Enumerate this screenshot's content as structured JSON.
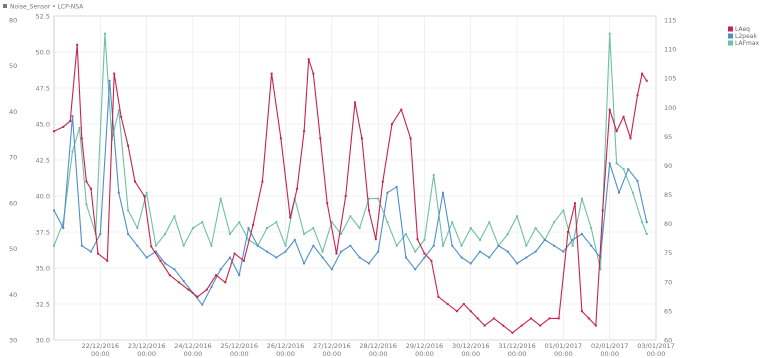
{
  "header": {
    "title": "Noise_Sensor • LCP-NSA"
  },
  "legend": {
    "position": "top-right",
    "items": [
      {
        "label": "LAeq",
        "color": "#c8234a"
      },
      {
        "label": "L2peak",
        "color": "#4f8fc8"
      },
      {
        "label": "LAFmax",
        "color": "#6fbfa6"
      }
    ]
  },
  "chart_data": {
    "type": "line",
    "title": "",
    "xlabel": "",
    "ylabel": "",
    "grid": true,
    "x_ticks": [
      {
        "date": "22/12/2016",
        "time": "00:00"
      },
      {
        "date": "23/12/2016",
        "time": "00:00"
      },
      {
        "date": "24/12/2016",
        "time": "00:00"
      },
      {
        "date": "25/12/2016",
        "time": "00:00"
      },
      {
        "date": "26/12/2016",
        "time": "00:00"
      },
      {
        "date": "27/12/2016",
        "time": "00:00"
      },
      {
        "date": "28/12/2016",
        "time": "00:00"
      },
      {
        "date": "29/12/2016",
        "time": "00:00"
      },
      {
        "date": "30/12/2016",
        "time": "00:00"
      },
      {
        "date": "31/12/2016",
        "time": "00:00"
      },
      {
        "date": "01/01/2017",
        "time": "00:00"
      },
      {
        "date": "02/01/2017",
        "time": "00:00"
      },
      {
        "date": "03/01/2017",
        "time": "00:00"
      }
    ],
    "y_axes": {
      "outer_left": {
        "ticks": [
          "80",
          "50",
          "40",
          "70",
          "60",
          "50",
          "40",
          "30"
        ]
      },
      "inner_left": {
        "ticks": [
          "52.5",
          "50.0",
          "47.5",
          "45.0",
          "42.5",
          "40.0",
          "37.5",
          "35.0",
          "32.5",
          "30.0"
        ],
        "ylim": [
          30,
          52.5
        ]
      },
      "right": {
        "ticks": [
          "115",
          "110",
          "105",
          "100",
          "95",
          "90",
          "85",
          "80",
          "75",
          "70",
          "65",
          "60"
        ],
        "ylim": [
          60,
          115
        ]
      }
    },
    "series": [
      {
        "name": "LAeq",
        "axis": "inner_left",
        "color": "#c8234a",
        "x_day": [
          0,
          0.2,
          0.35,
          0.5,
          0.6,
          0.7,
          0.8,
          0.95,
          1.15,
          1.3,
          1.45,
          1.6,
          1.75,
          1.95,
          2.1,
          2.3,
          2.5,
          2.7,
          2.9,
          3.1,
          3.3,
          3.5,
          3.7,
          3.9,
          4.1,
          4.3,
          4.5,
          4.7,
          4.9,
          5.1,
          5.25,
          5.4,
          5.5,
          5.6,
          5.75,
          5.9,
          6.1,
          6.3,
          6.5,
          6.65,
          6.8,
          6.95,
          7.1,
          7.3,
          7.5,
          7.7,
          7.85,
          8.0,
          8.15,
          8.3,
          8.5,
          8.7,
          8.85,
          9.0,
          9.15,
          9.3,
          9.5,
          9.7,
          9.9,
          10.1,
          10.3,
          10.5,
          10.7,
          10.9,
          11.1,
          11.25,
          11.4,
          11.55,
          11.7,
          11.85,
          12.0,
          12.15,
          12.3,
          12.45,
          12.6,
          12.7,
          12.8
        ],
        "values": [
          44.5,
          44.8,
          45.2,
          50.5,
          44.0,
          41.0,
          40.5,
          36.0,
          35.5,
          48.5,
          45.5,
          43.5,
          41.0,
          40.0,
          36.5,
          35.5,
          34.5,
          34.0,
          33.5,
          33.0,
          33.5,
          34.5,
          34.0,
          36.0,
          35.5,
          38.0,
          41.0,
          48.5,
          44.0,
          38.5,
          40.5,
          44.5,
          49.5,
          48.5,
          44.0,
          39.5,
          36.0,
          40.0,
          46.5,
          44.0,
          39.0,
          37.0,
          41.0,
          45.0,
          46.0,
          44.0,
          37.0,
          36.0,
          35.5,
          33.0,
          32.5,
          32.0,
          32.5,
          32.0,
          31.5,
          31.0,
          31.5,
          31.0,
          30.5,
          31.0,
          31.5,
          31.0,
          31.5,
          31.5,
          37.5,
          39.5,
          32.0,
          31.5,
          31.0,
          39.0,
          46.0,
          44.5,
          45.5,
          44.0,
          47.0,
          48.5,
          48.0
        ]
      },
      {
        "name": "L2peak",
        "axis": "right",
        "color": "#4f8fc8",
        "x_day": [
          0,
          0.2,
          0.4,
          0.6,
          0.8,
          1.0,
          1.2,
          1.4,
          1.6,
          1.8,
          2.0,
          2.2,
          2.4,
          2.6,
          2.8,
          3.0,
          3.2,
          3.4,
          3.6,
          3.8,
          4.0,
          4.2,
          4.4,
          4.6,
          4.8,
          5.0,
          5.2,
          5.4,
          5.6,
          5.8,
          6.0,
          6.2,
          6.4,
          6.6,
          6.8,
          7.0,
          7.2,
          7.4,
          7.6,
          7.8,
          8.0,
          8.2,
          8.4,
          8.6,
          8.8,
          9.0,
          9.2,
          9.4,
          9.6,
          9.8,
          10.0,
          10.2,
          10.4,
          10.6,
          10.8,
          11.0,
          11.2,
          11.4,
          11.6,
          11.8,
          12.0,
          12.2,
          12.4,
          12.6,
          12.8
        ],
        "values": [
          82,
          79,
          98,
          76,
          75,
          78,
          104,
          85,
          78,
          76,
          74,
          75,
          73,
          72,
          70,
          68,
          66,
          69,
          72,
          74,
          71,
          79,
          76,
          75,
          74,
          75,
          77,
          73,
          76,
          74,
          72,
          75,
          76,
          74,
          73,
          75,
          85,
          86,
          74,
          72,
          74,
          76,
          85,
          76,
          74,
          73,
          75,
          74,
          76,
          75,
          73,
          74,
          75,
          77,
          76,
          75,
          77,
          78,
          76,
          74,
          90,
          85,
          89,
          87,
          80
        ]
      },
      {
        "name": "LAFmax",
        "axis": "right",
        "color": "#6fbfa6",
        "x_day": [
          0,
          0.2,
          0.4,
          0.55,
          0.7,
          0.9,
          1.1,
          1.25,
          1.4,
          1.6,
          1.8,
          2.0,
          2.2,
          2.4,
          2.6,
          2.8,
          3.0,
          3.2,
          3.4,
          3.6,
          3.8,
          4.0,
          4.2,
          4.4,
          4.6,
          4.8,
          5.0,
          5.2,
          5.4,
          5.6,
          5.8,
          6.0,
          6.2,
          6.4,
          6.6,
          6.8,
          7.0,
          7.2,
          7.4,
          7.6,
          7.8,
          8.0,
          8.2,
          8.4,
          8.6,
          8.8,
          9.0,
          9.2,
          9.4,
          9.6,
          9.8,
          10.0,
          10.2,
          10.4,
          10.6,
          10.8,
          11.0,
          11.2,
          11.4,
          11.6,
          11.8,
          12.0,
          12.15,
          12.3,
          12.5,
          12.7,
          12.8
        ],
        "values": [
          76,
          80,
          92,
          96,
          83,
          78,
          112,
          94,
          99,
          82,
          79,
          85,
          76,
          78,
          81,
          76,
          79,
          80,
          76,
          84,
          78,
          80,
          77,
          76,
          79,
          80,
          76,
          84,
          78,
          79,
          75,
          80,
          78,
          81,
          79,
          84,
          84,
          80,
          76,
          78,
          75,
          77,
          88,
          76,
          80,
          76,
          79,
          77,
          80,
          76,
          78,
          81,
          76,
          79,
          77,
          80,
          82,
          76,
          84,
          79,
          72,
          112,
          90,
          89,
          85,
          80,
          78
        ]
      }
    ]
  }
}
